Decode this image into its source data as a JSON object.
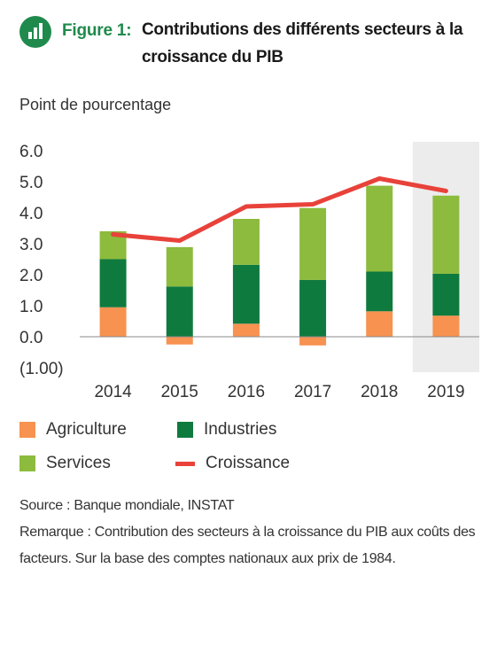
{
  "figure": {
    "label": "Figure 1:",
    "title": "Contributions des différents secteurs à la croissance du PIB",
    "icon": "bar-chart-icon",
    "colors": {
      "accent": "#1f8a4c"
    }
  },
  "chart_data": {
    "type": "bar",
    "ylabel": "Point de pourcentage",
    "categories": [
      "2014",
      "2015",
      "2016",
      "2017",
      "2018",
      "2019"
    ],
    "ylim": [
      -1.0,
      6.0
    ],
    "yticks": [
      "6.0",
      "5.0",
      "4.0",
      "3.0",
      "2.0",
      "1.0",
      "0.0",
      "(1.00)"
    ],
    "highlighted_category": "2019",
    "stacked": true,
    "series": [
      {
        "name": "Agriculture",
        "type": "bar",
        "color": "#f79250",
        "values": [
          0.95,
          -0.25,
          0.42,
          -0.28,
          0.82,
          0.68
        ]
      },
      {
        "name": "Industries",
        "type": "bar",
        "color": "#0f7a3e",
        "values": [
          1.55,
          1.62,
          1.9,
          1.83,
          1.28,
          1.35
        ]
      },
      {
        "name": "Services",
        "type": "bar",
        "color": "#8cbb3d",
        "values": [
          0.9,
          1.27,
          1.48,
          2.32,
          2.77,
          2.52
        ]
      },
      {
        "name": "Croissance",
        "type": "line",
        "color": "#e8423a",
        "values": [
          3.3,
          3.1,
          4.2,
          4.27,
          5.1,
          4.7
        ]
      }
    ],
    "legend_position": "bottom",
    "grid": false
  },
  "notes": {
    "source": "Source :  Banque mondiale, INSTAT",
    "remark": "Remarque : Contribution des secteurs à la croissance du PIB aux coûts des facteurs. Sur la base des comptes nationaux aux prix de 1984."
  }
}
